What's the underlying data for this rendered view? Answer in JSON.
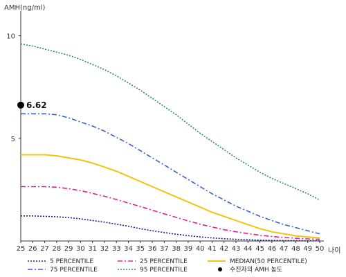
{
  "chart_data": {
    "type": "line",
    "ylabel": "AMH(ng/ml)",
    "xlabel": "나이",
    "x": [
      25,
      26,
      27,
      28,
      29,
      30,
      31,
      32,
      33,
      34,
      35,
      36,
      37,
      38,
      39,
      40,
      41,
      42,
      43,
      44,
      45,
      46,
      47,
      48,
      49,
      50
    ],
    "x_ticks": [
      "25",
      "26",
      "27",
      "28",
      "29",
      "30",
      "31",
      "32",
      "33",
      "34",
      "35",
      "36",
      "37",
      "38",
      "39",
      "40",
      "41",
      "42",
      "43",
      "44",
      "45",
      "46",
      "47",
      "48",
      "49",
      "50"
    ],
    "xlim": [
      25,
      50
    ],
    "ylim": [
      0,
      11
    ],
    "y_ticks": [
      {
        "value": 5,
        "label": "5"
      },
      {
        "value": 10,
        "label": "10"
      }
    ],
    "grid": false,
    "legend_position": "bottom",
    "series": [
      {
        "name": "95 PERCENTILE",
        "color": "#2e8b57",
        "dash": "dotted",
        "values": [
          9.6,
          9.5,
          9.35,
          9.2,
          9.05,
          8.85,
          8.6,
          8.35,
          8.05,
          7.7,
          7.35,
          6.95,
          6.55,
          6.15,
          5.7,
          5.25,
          4.85,
          4.45,
          4.05,
          3.7,
          3.35,
          3.05,
          2.8,
          2.55,
          2.3,
          2.0
        ]
      },
      {
        "name": "75 PERCENTILE",
        "color": "#3b5fcf",
        "dash": "dashdot",
        "values": [
          6.2,
          6.2,
          6.2,
          6.15,
          6.0,
          5.8,
          5.6,
          5.35,
          5.05,
          4.75,
          4.4,
          4.05,
          3.7,
          3.35,
          3.0,
          2.65,
          2.3,
          2.0,
          1.7,
          1.45,
          1.2,
          1.0,
          0.8,
          0.65,
          0.5,
          0.35
        ]
      },
      {
        "name": "MEDIAN(50 PERCENTILE)",
        "color": "#f2c40f",
        "dash": "solid",
        "values": [
          4.2,
          4.2,
          4.2,
          4.15,
          4.05,
          3.95,
          3.8,
          3.6,
          3.4,
          3.15,
          2.9,
          2.65,
          2.4,
          2.15,
          1.9,
          1.65,
          1.4,
          1.2,
          1.0,
          0.8,
          0.6,
          0.45,
          0.35,
          0.25,
          0.2,
          0.15
        ]
      },
      {
        "name": "25 PERCENTILE",
        "color": "#e0208f",
        "dash": "dashdot",
        "values": [
          2.65,
          2.65,
          2.65,
          2.62,
          2.55,
          2.45,
          2.32,
          2.18,
          2.02,
          1.85,
          1.68,
          1.5,
          1.32,
          1.15,
          0.98,
          0.82,
          0.68,
          0.55,
          0.45,
          0.36,
          0.28,
          0.22,
          0.17,
          0.13,
          0.1,
          0.08
        ]
      },
      {
        "name": "5 PERCENTILE",
        "color": "#1a1a8c",
        "dash": "dotted",
        "values": [
          1.22,
          1.22,
          1.2,
          1.18,
          1.14,
          1.08,
          1.0,
          0.92,
          0.82,
          0.72,
          0.6,
          0.5,
          0.41,
          0.33,
          0.26,
          0.2,
          0.15,
          0.11,
          0.08,
          0.06,
          0.04,
          0.03,
          0.02,
          0.02,
          0.01,
          0.01
        ]
      }
    ],
    "points": [
      {
        "name": "수진자의 AMH 농도",
        "x": 25,
        "y": 6.62,
        "label": "6.62",
        "color": "#000000"
      }
    ],
    "legend": [
      {
        "label": "5 PERCENTILE",
        "color": "#1a1a8c",
        "dash": "dotted",
        "marker": "line"
      },
      {
        "label": "25 PERCENTILE",
        "color": "#e0208f",
        "dash": "dashdot",
        "marker": "line"
      },
      {
        "label": "MEDIAN(50 PERCENTILE)",
        "color": "#f2c40f",
        "dash": "solid",
        "marker": "line"
      },
      {
        "label": "75 PERCENTILE",
        "color": "#3b5fcf",
        "dash": "dashdot",
        "marker": "line"
      },
      {
        "label": "95 PERCENTILE",
        "color": "#2e8b57",
        "dash": "dotted",
        "marker": "line"
      },
      {
        "label": "수진자의 AMH 농도",
        "color": "#000000",
        "dash": "solid",
        "marker": "dot"
      }
    ]
  }
}
